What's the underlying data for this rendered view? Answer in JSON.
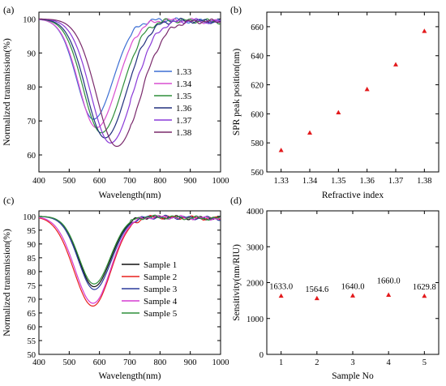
{
  "chart_data": [
    {
      "panel": "(a)",
      "type": "line",
      "xlabel": "Wavelength(nm)",
      "ylabel": "Normalized transmission(%)",
      "xlim": [
        400,
        1000
      ],
      "ylim": [
        55,
        102
      ],
      "xticks": [
        400,
        500,
        600,
        700,
        800,
        900,
        1000
      ],
      "yticks": [
        60,
        70,
        80,
        90,
        100
      ],
      "legend_position": "center-right",
      "series": [
        {
          "name": "1.33",
          "color": "#3d6fd4",
          "dip_x": 580,
          "dip_y": 70.5,
          "sigma_left": 55,
          "sigma_right": 65
        },
        {
          "name": "1.34",
          "color": "#d94fd0",
          "dip_x": 590,
          "dip_y": 68.0,
          "sigma_left": 58,
          "sigma_right": 68
        },
        {
          "name": "1.35",
          "color": "#2f8f3a",
          "dip_x": 606,
          "dip_y": 66.5,
          "sigma_left": 60,
          "sigma_right": 70
        },
        {
          "name": "1.36",
          "color": "#22307e",
          "dip_x": 618,
          "dip_y": 65.0,
          "sigma_left": 62,
          "sigma_right": 72
        },
        {
          "name": "1.37",
          "color": "#8a3ad8",
          "dip_x": 636,
          "dip_y": 63.5,
          "sigma_left": 64,
          "sigma_right": 74
        },
        {
          "name": "1.38",
          "color": "#7a2a6c",
          "dip_x": 657,
          "dip_y": 62.5,
          "sigma_left": 66,
          "sigma_right": 78
        }
      ]
    },
    {
      "panel": "(b)",
      "type": "scatter",
      "xlabel": "Refractive index",
      "ylabel": "SPR peak position(nm)",
      "xlim": [
        1.325,
        1.385
      ],
      "ylim": [
        560,
        670
      ],
      "xticks": [
        1.33,
        1.34,
        1.35,
        1.36,
        1.37,
        1.38
      ],
      "yticks": [
        560,
        580,
        600,
        620,
        640,
        660
      ],
      "marker_color": "#e31a1c",
      "x": [
        1.33,
        1.34,
        1.35,
        1.36,
        1.37,
        1.38
      ],
      "y": [
        575,
        587,
        601,
        617,
        634,
        657
      ]
    },
    {
      "panel": "(c)",
      "type": "line",
      "xlabel": "Wavelength(nm)",
      "ylabel": "Normalized transmission(%)",
      "xlim": [
        400,
        1000
      ],
      "ylim": [
        50,
        102
      ],
      "xticks": [
        400,
        500,
        600,
        700,
        800,
        900,
        1000
      ],
      "yticks": [
        50,
        55,
        60,
        65,
        70,
        75,
        80,
        85,
        90,
        95,
        100
      ],
      "legend_position": "center-right",
      "series": [
        {
          "name": "Sample 1",
          "color": "#111111",
          "dip_x": 582,
          "dip_y": 74.5,
          "sigma_left": 50,
          "sigma_right": 55
        },
        {
          "name": "Sample 2",
          "color": "#e8211d",
          "dip_x": 578,
          "dip_y": 67.5,
          "sigma_left": 62,
          "sigma_right": 60
        },
        {
          "name": "Sample 3",
          "color": "#2a3a9c",
          "dip_x": 583,
          "dip_y": 73.5,
          "sigma_left": 52,
          "sigma_right": 56
        },
        {
          "name": "Sample 4",
          "color": "#d63bd2",
          "dip_x": 579,
          "dip_y": 68.5,
          "sigma_left": 60,
          "sigma_right": 58
        },
        {
          "name": "Sample 5",
          "color": "#2f8f3a",
          "dip_x": 582,
          "dip_y": 75.5,
          "sigma_left": 50,
          "sigma_right": 54
        }
      ]
    },
    {
      "panel": "(d)",
      "type": "scatter",
      "xlabel": "Sample No",
      "ylabel": "Sensitivity(nm/RIU)",
      "xlim": [
        0.6,
        5.4
      ],
      "ylim": [
        0,
        4000
      ],
      "xticks": [
        1,
        2,
        3,
        4,
        5
      ],
      "yticks": [
        0,
        1000,
        2000,
        3000,
        4000
      ],
      "marker_color": "#e31a1c",
      "x": [
        1,
        2,
        3,
        4,
        5
      ],
      "y": [
        1633.0,
        1564.6,
        1640.0,
        1660.0,
        1629.8
      ],
      "labels": [
        "1633.0",
        "1564.6",
        "1640.0",
        "1660.0",
        "1629.8"
      ]
    }
  ]
}
